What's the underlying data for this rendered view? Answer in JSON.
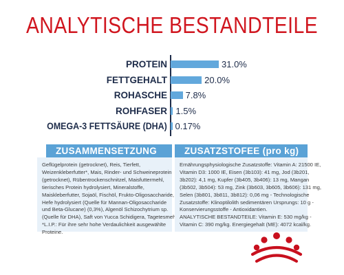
{
  "title": "ANALYTISCHE BESTANDTEILE",
  "colors": {
    "title": "#d0161f",
    "label": "#1e2c4a",
    "bar": "#62a8dc",
    "bar_text": "#1e2c4a",
    "axis": "#1e2c4a",
    "card_header": "#5aa2d6",
    "card_background": "#e8f1f9",
    "logo_red": "#c8101e"
  },
  "chart_data": {
    "type": "bar",
    "orientation": "horizontal",
    "categories": [
      "PROTEIN",
      "FETTGEHALT",
      "ROHASCHE",
      "ROHFASER",
      "OMEGA-3 FETTSÄURE (DHA)"
    ],
    "values": [
      31.0,
      20.0,
      7.8,
      1.5,
      0.17
    ],
    "value_labels": [
      "31.0%",
      "20.0%",
      "7.8%",
      "1.5%",
      "0.17%"
    ],
    "xlim": [
      0,
      31
    ],
    "grid": false,
    "title": "",
    "xlabel": "",
    "ylabel": ""
  },
  "composition": {
    "header": "ZUSAMMENSETZUNG",
    "lines": [
      "Geflügelprotein (getrocknet), Reis, Tierfett,",
      "Weizenkleberfutter*, Mais, Rinder- und Schweineprotein",
      "(getrocknet), Rübentrockenschnitzel, Maisfuttermehl,",
      "tierisches Protein hydrolysiert, Mineralstoffe,",
      "Maiskleberfutter, Sojaöl, Fischöl, Frukto-Oligosaccharide,",
      "Hefe hydrolysiert (Quelle für Mannan-Oligosaccharide",
      "und Beta-Glucane) (0,3%), Algenöl Schizochytrium sp.",
      "(Quelle für DHA), Saft von Yucca Schidigera, Tagetesmehl.",
      "*L.I.P.: Für ihre sehr hohe Verdaulichkeit ausgewählte",
      "Proteine."
    ]
  },
  "additives": {
    "header": "ZUSATZSTOFEE (pro kg)",
    "lines": [
      "Ernährungsphysiologische Zusatzstoffe: Vitamin A: 21500 IE,",
      "Vitamin D3: 1000 IE, Eisen (3b103): 41 mg, Jod (3b201,",
      "3b202): 4,1 mg, Kupfer (3b405, 3b406): 13 mg, Mangan",
      "(3b502, 3b504): 53 mg, Zink (3b603, 3b605, 3b606): 131 mg,",
      "Selen (3b801, 3b811, 3b812): 0,06 mg - Technologische",
      "Zusatzstoffe: Klinoptilolith sedimentären Ursprungs: 10 g -",
      "Konservierungsstoffe - Antioxidantien.",
      "ANALYTISCHE BESTANDTEILE: Vitamin E: 530 mg/kg -",
      "Vitamin C: 390 mg/kg. Energiegehalt (ME): 4072 kcal/kg."
    ]
  },
  "logo": {
    "icon": "royal-canin-crown-logo"
  }
}
